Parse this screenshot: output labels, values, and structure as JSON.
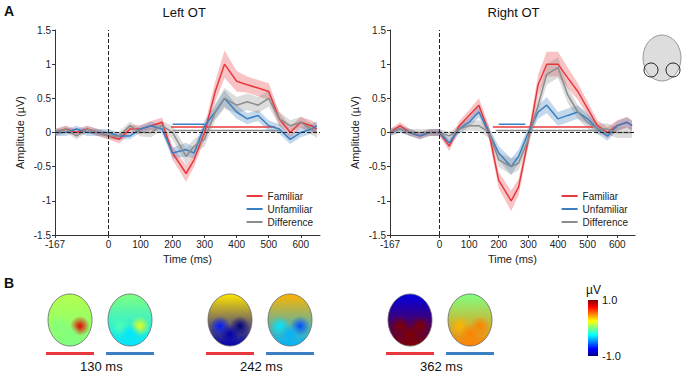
{
  "panels": [
    "A",
    "B"
  ],
  "chart_data": [
    {
      "type": "line",
      "title": "Left OT",
      "x_label": "Time (ms)",
      "y_label": "Amplitude (µV)",
      "x": [
        -167,
        -133,
        -100,
        -67,
        -33,
        0,
        33,
        67,
        100,
        133,
        167,
        200,
        242,
        267,
        300,
        333,
        362,
        400,
        433,
        467,
        500,
        533,
        567,
        600,
        633,
        650
      ],
      "xlim": [
        -167,
        660
      ],
      "xticks": [
        -167,
        0,
        100,
        200,
        300,
        400,
        500,
        600
      ],
      "ylim": [
        -1.5,
        1.5
      ],
      "yticks": [
        -1.5,
        -1,
        -0.5,
        0,
        0.5,
        1,
        1.5
      ],
      "onset_line": 0,
      "zero_line": 0,
      "legend": "lower right",
      "series": [
        {
          "name": "Familiar",
          "color": "#e8383d",
          "values": [
            0,
            0.05,
            0,
            0.05,
            0,
            -0.05,
            -0.1,
            0.05,
            0.05,
            0.1,
            0.15,
            -0.3,
            -0.6,
            -0.4,
            0,
            0.6,
            1.0,
            0.75,
            0.7,
            0.65,
            0.6,
            0.2,
            0,
            0.15,
            0.1,
            0.05
          ],
          "errors": [
            0.05,
            0.05,
            0.05,
            0.05,
            0.05,
            0.05,
            0.06,
            0.06,
            0.06,
            0.07,
            0.07,
            0.1,
            0.12,
            0.1,
            0.1,
            0.15,
            0.2,
            0.15,
            0.12,
            0.12,
            0.12,
            0.1,
            0.08,
            0.08,
            0.08,
            0.08
          ],
          "significant": [
            195,
            520
          ],
          "significant_y": 0.08
        },
        {
          "name": "Unfamiliar",
          "color": "#3a7fc1",
          "values": [
            0,
            0,
            0.05,
            0,
            0,
            0,
            -0.05,
            -0.05,
            0.05,
            0.1,
            0.05,
            -0.3,
            -0.25,
            -0.3,
            0.1,
            0.3,
            0.5,
            0.3,
            0.2,
            0.25,
            0.1,
            0.05,
            -0.1,
            0,
            0.05,
            0.1
          ],
          "errors": [
            0.05,
            0.05,
            0.05,
            0.05,
            0.05,
            0.05,
            0.05,
            0.05,
            0.05,
            0.06,
            0.06,
            0.08,
            0.1,
            0.08,
            0.08,
            0.1,
            0.12,
            0.1,
            0.08,
            0.08,
            0.08,
            0.07,
            0.07,
            0.07,
            0.07,
            0.07
          ],
          "significant": [
            200,
            300
          ],
          "significant_y": 0.12
        },
        {
          "name": "Difference",
          "color": "#8c8c8c",
          "values": [
            0,
            0.05,
            -0.05,
            0.05,
            0,
            -0.05,
            -0.05,
            0.1,
            0,
            0,
            0.1,
            0,
            -0.35,
            -0.2,
            -0.1,
            0.3,
            0.5,
            0.4,
            0.45,
            0.4,
            0.5,
            0.2,
            0.1,
            0.15,
            0.05,
            0
          ],
          "errors": [
            0.05,
            0.05,
            0.05,
            0.05,
            0.05,
            0.05,
            0.06,
            0.06,
            0.06,
            0.07,
            0.07,
            0.1,
            0.12,
            0.1,
            0.1,
            0.12,
            0.15,
            0.12,
            0.12,
            0.12,
            0.12,
            0.1,
            0.08,
            0.08,
            0.08,
            0.08
          ],
          "significant": [
            200,
            540
          ],
          "significant_y": 0.03
        }
      ]
    },
    {
      "type": "line",
      "title": "Right OT",
      "x_label": "Time (ms)",
      "y_label": "Amplitude (µV)",
      "x": [
        -167,
        -133,
        -100,
        -67,
        -33,
        0,
        33,
        67,
        100,
        133,
        167,
        200,
        242,
        267,
        300,
        333,
        362,
        400,
        433,
        467,
        500,
        533,
        567,
        600,
        633,
        650
      ],
      "xlim": [
        -167,
        660
      ],
      "xticks": [
        -167,
        0,
        100,
        200,
        300,
        400,
        500,
        600
      ],
      "ylim": [
        -1.5,
        1.5
      ],
      "yticks": [
        -1.5,
        -1,
        -0.5,
        0,
        0.5,
        1,
        1.5
      ],
      "onset_line": 0,
      "zero_line": 0,
      "legend": "lower right",
      "series": [
        {
          "name": "Familiar",
          "color": "#e8383d",
          "values": [
            0,
            0.1,
            0,
            -0.05,
            0,
            0,
            -0.2,
            0.1,
            0.25,
            0.4,
            0,
            -0.7,
            -1.0,
            -0.8,
            -0.1,
            0.7,
            1.0,
            1.0,
            0.8,
            0.6,
            0.35,
            0.1,
            0,
            0.1,
            0.15,
            0.1
          ],
          "errors": [
            0.05,
            0.05,
            0.05,
            0.05,
            0.05,
            0.05,
            0.07,
            0.07,
            0.08,
            0.1,
            0.1,
            0.12,
            0.15,
            0.12,
            0.1,
            0.15,
            0.18,
            0.18,
            0.15,
            0.12,
            0.1,
            0.08,
            0.08,
            0.08,
            0.08,
            0.08
          ],
          "significant": [
            180,
            520
          ],
          "significant_y": 0.08
        },
        {
          "name": "Unfamiliar",
          "color": "#3a7fc1",
          "values": [
            0,
            0.05,
            0,
            -0.05,
            0,
            0,
            -0.15,
            0.05,
            0.15,
            0.3,
            0,
            -0.3,
            -0.5,
            -0.35,
            0,
            0.3,
            0.4,
            0.2,
            0.25,
            0.3,
            0.2,
            0.05,
            -0.05,
            0.1,
            0.15,
            0.1
          ],
          "errors": [
            0.05,
            0.05,
            0.05,
            0.05,
            0.05,
            0.05,
            0.06,
            0.06,
            0.07,
            0.08,
            0.08,
            0.1,
            0.12,
            0.1,
            0.08,
            0.1,
            0.12,
            0.1,
            0.1,
            0.1,
            0.08,
            0.07,
            0.07,
            0.07,
            0.07,
            0.07
          ],
          "significant": [
            200,
            290
          ],
          "significant_y": 0.12
        },
        {
          "name": "Difference",
          "color": "#8c8c8c",
          "values": [
            0,
            0.05,
            0,
            0,
            0,
            0,
            -0.05,
            0.05,
            0.1,
            0.1,
            0,
            -0.4,
            -0.5,
            -0.45,
            -0.1,
            0.4,
            0.85,
            0.95,
            0.55,
            0.3,
            0.15,
            0.05,
            0.05,
            0,
            0,
            0
          ],
          "errors": [
            0.05,
            0.05,
            0.05,
            0.05,
            0.05,
            0.05,
            0.06,
            0.06,
            0.07,
            0.08,
            0.08,
            0.1,
            0.12,
            0.1,
            0.1,
            0.12,
            0.15,
            0.15,
            0.12,
            0.1,
            0.1,
            0.08,
            0.08,
            0.08,
            0.08,
            0.08
          ],
          "significant": [
            190,
            560
          ],
          "significant_y": 0.03
        }
      ]
    }
  ],
  "topomaps": {
    "colorbar": {
      "label": "µV",
      "range": [
        -1,
        1
      ],
      "ticks": [
        {
          "value": 1,
          "label": "1.0"
        },
        {
          "value": -1,
          "label": "-1.0"
        }
      ]
    },
    "maps": [
      {
        "time": "130 ms",
        "conditions": [
          {
            "name": "Familiar",
            "top": 0.1,
            "bottom": 0.0,
            "left": 0.0,
            "right": 0.8
          },
          {
            "name": "Unfamiliar",
            "top": 0.0,
            "bottom": -0.3,
            "left": -0.1,
            "right": 0.2
          }
        ]
      },
      {
        "time": "242 ms",
        "conditions": [
          {
            "name": "Familiar",
            "top": 0.3,
            "bottom": -0.9,
            "left": -0.7,
            "right": -1.0
          },
          {
            "name": "Unfamiliar",
            "top": 0.4,
            "bottom": -0.4,
            "left": -0.3,
            "right": -0.6
          }
        ]
      },
      {
        "time": "362 ms",
        "conditions": [
          {
            "name": "Familiar",
            "top": -0.8,
            "bottom": 1.0,
            "left": 1.0,
            "right": 1.0
          },
          {
            "name": "Unfamiliar",
            "top": 0.0,
            "bottom": 0.5,
            "left": 0.4,
            "right": 0.5
          }
        ]
      }
    ]
  }
}
